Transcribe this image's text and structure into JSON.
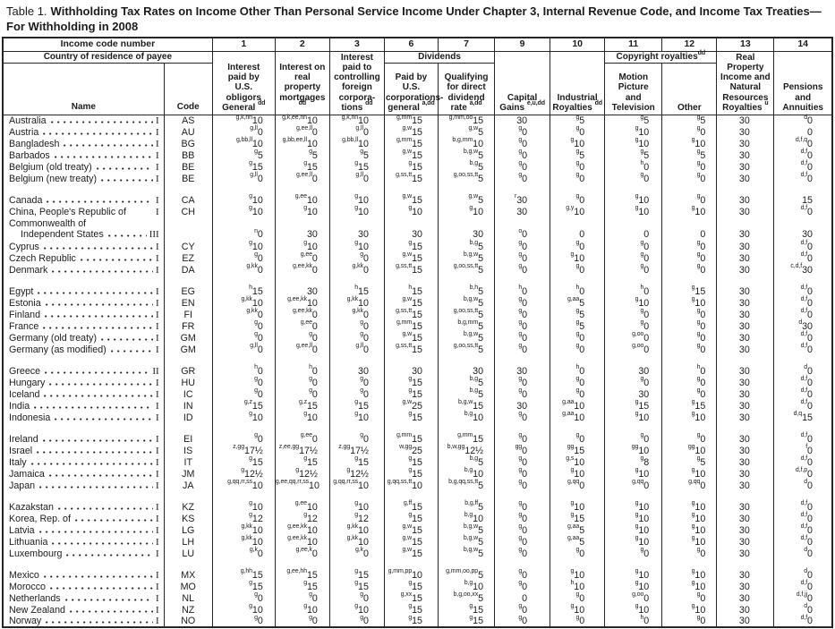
{
  "title": {
    "prefix": "Table 1.",
    "bold": "Withholding Tax Rates on Income Other Than Personal Service Income Under Chapter 3, Internal Revenue Code, and Income Tax Treaties—For Withholding in 2008"
  },
  "header": {
    "income_code_label": "Income code number",
    "country_label": "Country of residence of payee",
    "name_label": "Name",
    "code_label": "Code",
    "code_numbers": [
      "1",
      "2",
      "3",
      "6",
      "7",
      "9",
      "10",
      "11",
      "12",
      "13",
      "14"
    ],
    "dividends_group": "Dividends",
    "copyright_group": "Copyright royalties^dd^",
    "columns": {
      "c1": "Interest\npaid by\nU.S.\nobligors\nGeneral ^dd^",
      "c2": "Interest on\nreal property\nmortgages ^dd^",
      "c3": "Interest\npaid to\ncontrolling\nforeign\ncorpora-\ntions ^dd^",
      "c6": "Paid by U.S.\ncorporations-\ngeneral ^a,dd^",
      "c7": "Qualifying\nfor direct\ndividend\nrate ^a,dd^",
      "c9": "Capital\nGains ^e,u,dd^",
      "c10": "Industrial\nRoyalties ^dd^",
      "c11": "Motion\nPicture\nand\nTelevision",
      "c12": "Other",
      "c13": "Real\nProperty\nIncome and\nNatural\nResources\nRoyalties ^u^",
      "c14": "Pensions\nand\nAnnuities"
    }
  },
  "groups": [
    {
      "rows": [
        {
          "name": "Australia",
          "roman": "I",
          "code": "AS",
          "v": [
            "^g,k,nn^10",
            "^g,k,ee,nn^10",
            "^g,k,nn^10",
            "^g,mm^15",
            "^g,mm,oo^15",
            "30",
            "^g^5",
            "^g^5",
            "^g^5",
            "30",
            "^d^0"
          ]
        },
        {
          "name": "Austria",
          "roman": "I",
          "code": "AU",
          "v": [
            "^g,ll^0",
            "^g,ee,ll^0",
            "^g,ll^0",
            "^g,w^15",
            "^g,w^5",
            "^g^0",
            "^g^0",
            "^g^10",
            "^g^0",
            "30",
            "0"
          ]
        },
        {
          "name": "Bangladesh",
          "roman": "I",
          "code": "BG",
          "v": [
            "^g,bb,ll^10",
            "^g,bb,ee,ll^10",
            "^g,bb,ll^10",
            "^g,mm^15",
            "^b,g,mm^10",
            "^g^0",
            "^g^10",
            "^g^10",
            "^g^10",
            "30",
            "^d,f,q^0"
          ]
        },
        {
          "name": "Barbados",
          "roman": "I",
          "code": "BB",
          "v": [
            "^g^5",
            "^g^5",
            "^g^5",
            "^g,w^15",
            "^b,g,w^5",
            "^g^0",
            "^g^5",
            "^g^5",
            "^g^5",
            "30",
            "^d,f^0"
          ]
        },
        {
          "name": "Belgium (old treaty)",
          "roman": "I",
          "code": "BE",
          "v": [
            "^g^15",
            "^g^15",
            "^g^15",
            "^g^15",
            "^b,g^5",
            "^g^0",
            "^g^0",
            "^h^0",
            "^g^0",
            "30",
            "^d,f^0"
          ]
        },
        {
          "name": "Belgium (new treaty)",
          "roman": "I",
          "code": "BE",
          "v": [
            "^g,ll^0",
            "^g,ee,ll^0",
            "^g,ll^0",
            "^g,ss,tt^15",
            "^g,oo,ss,tt^5",
            "^g^0",
            "^g^0",
            "^g^0",
            "^g^0",
            "30",
            "^d,f^0"
          ]
        }
      ]
    },
    {
      "rows": [
        {
          "name": "Canada",
          "roman": "I",
          "code": "CA",
          "v": [
            "^g^10",
            "^g,ee^10",
            "^g^10",
            "^g,w^15",
            "^g,w^5",
            "^r^30",
            "^g^0",
            "^g^10",
            "^g^0",
            "30",
            "15"
          ]
        },
        {
          "name": "China, People's Republic of",
          "roman": "I",
          "code": "CH",
          "leader": false,
          "v": [
            "^g^10",
            "^g^10",
            "^g^10",
            "^g^10",
            "^g^10",
            "30",
            "^g,y^10",
            "^g^10",
            "^g^10",
            "30",
            "^d,f^0"
          ]
        },
        {
          "name": "Commonwealth of",
          "name2": "Independent States",
          "roman": "III",
          "code": "",
          "v": [
            "^n^0",
            "30",
            "30",
            "30",
            "30",
            "^o^0",
            "0",
            "0",
            "0",
            "30",
            "30"
          ]
        },
        {
          "name": "Cyprus",
          "roman": "I",
          "code": "CY",
          "v": [
            "^g^10",
            "^g^10",
            "^g^10",
            "^g^15",
            "^b,g^5",
            "^g^0",
            "^g^0",
            "^g^0",
            "^g^0",
            "30",
            "^d,f^0"
          ]
        },
        {
          "name": "Czech Republic",
          "roman": "I",
          "code": "EZ",
          "v": [
            "^g^0",
            "^g,ee^0",
            "^g^0",
            "^g,w^15",
            "^b,g,w^5",
            "^g^0",
            "^g^10",
            "^g^0",
            "^g^0",
            "30",
            "^d,f^0"
          ]
        },
        {
          "name": "Denmark",
          "roman": "I",
          "code": "DA",
          "v": [
            "^g,kk^0",
            "^g,ee,kk^0",
            "^g,kk^0",
            "^g,ss,tt^15",
            "^g,oo,ss,tt^5",
            "^g^0",
            "^g^0",
            "^g^0",
            "^g^0",
            "30",
            "^c,d,f^30"
          ]
        }
      ]
    },
    {
      "rows": [
        {
          "name": "Egypt",
          "roman": "I",
          "code": "EG",
          "v": [
            "^h^15",
            "30",
            "^h^15",
            "^h^15",
            "^b,h^5",
            "^h^0",
            "^h^0",
            "^h^0",
            "^g^15",
            "30",
            "^d,f^0"
          ]
        },
        {
          "name": "Estonia",
          "roman": "I",
          "code": "EN",
          "v": [
            "^g,kk^10",
            "^g,ee,kk^10",
            "^g,kk^10",
            "^g,w^15",
            "^b,g,w^5",
            "^g^0",
            "^g,aa^5",
            "^g^10",
            "^g^10",
            "30",
            "^d,f^0"
          ]
        },
        {
          "name": "Finland",
          "roman": "I",
          "code": "FI",
          "v": [
            "^g,kk^0",
            "^g,ee,kk^0",
            "^g,kk^0",
            "^g,ss,tt^15",
            "^g,oo,ss,tt^5",
            "^g^0",
            "^g^5",
            "^g^0",
            "^g^0",
            "30",
            "^d,f^0"
          ]
        },
        {
          "name": "France",
          "roman": "I",
          "code": "FR",
          "v": [
            "^g^0",
            "^g,ee^0",
            "^g^0",
            "^g,mm^15",
            "^b,g,mm^5",
            "^g^0",
            "^g^5",
            "^g^0",
            "^g^0",
            "30",
            "^d^30"
          ]
        },
        {
          "name": "Germany (old treaty)",
          "roman": "I",
          "code": "GM",
          "v": [
            "^g^0",
            "^g^0",
            "^g^0",
            "^g,w^15",
            "^b,g,w^5",
            "^g^0",
            "^g^0",
            "^g,oo^0",
            "^g^0",
            "30",
            "^d,f^0"
          ]
        },
        {
          "name": "Germany (as modified)",
          "roman": "I",
          "code": "GM",
          "v": [
            "^g,ll^0",
            "^g,ee,ll^0",
            "^g,ll^0",
            "^g,ss,tt^15",
            "^g,oo,ss,tt^5",
            "^g^0",
            "^g^0",
            "^g,oo^0",
            "^g^0",
            "30",
            "^d,f^0"
          ]
        }
      ]
    },
    {
      "rows": [
        {
          "name": "Greece",
          "roman": "II",
          "code": "GR",
          "v": [
            "^h^0",
            "^h^0",
            "30",
            "30",
            "30",
            "30",
            "^h^0",
            "30",
            "^h^0",
            "30",
            "^d^0"
          ]
        },
        {
          "name": "Hungary",
          "roman": "I",
          "code": "HU",
          "v": [
            "^g^0",
            "^g^0",
            "^g^0",
            "^g^15",
            "^b,g^5",
            "^g^0",
            "^g^0",
            "^g^0",
            "^g^0",
            "30",
            "^d,f^0"
          ]
        },
        {
          "name": "Iceland",
          "roman": "I",
          "code": "IC",
          "v": [
            "^g^0",
            "^g^0",
            "^g^0",
            "^g^15",
            "^b,g^5",
            "^g^0",
            "^g^0",
            "30",
            "^g^0",
            "30",
            "^d,f^0"
          ]
        },
        {
          "name": "India",
          "roman": "I",
          "code": "IN",
          "v": [
            "^g,z^15",
            "^g,z^15",
            "^g^15",
            "^g,w^25",
            "^b,g,w^15",
            "30",
            "^g,aa^10",
            "^g^15",
            "^g^15",
            "30",
            "^d,f^0"
          ]
        },
        {
          "name": "Indonesia",
          "roman": "I",
          "code": "ID",
          "v": [
            "^g^10",
            "^g^10",
            "^g^10",
            "^g^15",
            "^b,g^10",
            "^g^0",
            "^g,aa^10",
            "^g^10",
            "^g^10",
            "30",
            "^d,q^15"
          ]
        }
      ]
    },
    {
      "rows": [
        {
          "name": "Ireland",
          "roman": "I",
          "code": "EI",
          "v": [
            "^g^0",
            "^g,ee^0",
            "^g^0",
            "^g,mm^15",
            "^g,mm^15",
            "^g^0",
            "^g^0",
            "^g^0",
            "^g^0",
            "30",
            "^d,f^0"
          ]
        },
        {
          "name": "Israel",
          "roman": "I",
          "code": "IS",
          "v": [
            "^z,gg^17½",
            "^z,ee,gg^17½",
            "^z,gg^17½",
            "^w,gg^25",
            "^b,w,gg^12½",
            "^gg^0",
            "^gg^15",
            "^gg^10",
            "^gg^10",
            "30",
            "^f^0"
          ]
        },
        {
          "name": "Italy",
          "roman": "I",
          "code": "IT",
          "v": [
            "^g^15",
            "^g^15",
            "^g^15",
            "^g^15",
            "^b,g^5",
            "^g^0",
            "^g,s^10",
            "^g^8",
            "^g^5",
            "30",
            "^d,f^0"
          ]
        },
        {
          "name": "Jamaica",
          "roman": "I",
          "code": "JM",
          "v": [
            "^g^12½",
            "^g^12½",
            "^g^12½",
            "^g^15",
            "^b,g^10",
            "^g^0",
            "^g^10",
            "^g^10",
            "^g^10",
            "30",
            "^d,f,p^0"
          ]
        },
        {
          "name": "Japan",
          "roman": "I",
          "code": "JA",
          "v": [
            "^g,qq,rr,ss^10",
            "^g,ee,qq,rr,ss^10",
            "^g,qq,rr,ss^10",
            "^g,qq,ss,tt^10",
            "^b,g,qq,ss,tt^5",
            "^g^0",
            "^g,qq^0",
            "^g,qq^0",
            "^g,qq^0",
            "30",
            "^d^0"
          ]
        }
      ]
    },
    {
      "rows": [
        {
          "name": "Kazakstan",
          "roman": "I",
          "code": "KZ",
          "v": [
            "^g^10",
            "^g,ee^10",
            "^g^10",
            "^g,ff^15",
            "^b,g,ff^5",
            "^g^0",
            "^g^10",
            "^g^10",
            "^g^10",
            "30",
            "^d,f^0"
          ]
        },
        {
          "name": "Korea, Rep. of",
          "roman": "I",
          "code": "KS",
          "v": [
            "^g^12",
            "^g^12",
            "^g^12",
            "^g^15",
            "^b,g^10",
            "^g^0",
            "^g^15",
            "^g^10",
            "^g^10",
            "30",
            "^d,f^0"
          ]
        },
        {
          "name": "Latvia",
          "roman": "I",
          "code": "LG",
          "v": [
            "^g,kk^10",
            "^g,ee,kk^10",
            "^g,kk^10",
            "^g,w^15",
            "^b,g,w^5",
            "^g^0",
            "^g,aa^5",
            "^g^10",
            "^g^10",
            "30",
            "^d,f^0"
          ]
        },
        {
          "name": "Lithuania",
          "roman": "I",
          "code": "LH",
          "v": [
            "^g,kk^10",
            "^g,ee,kk^10",
            "^g,kk^10",
            "^g,w^15",
            "^b,g,w^5",
            "^g^0",
            "^g,aa^5",
            "^g^10",
            "^g^10",
            "30",
            "^d,f^0"
          ]
        },
        {
          "name": "Luxembourg",
          "roman": "I",
          "code": "LU",
          "v": [
            "^g,k^0",
            "^g,ee,k^0",
            "^g,k^0",
            "^g,w^15",
            "^b,g,w^5",
            "^g^0",
            "^g^0",
            "^g^0",
            "^g^0",
            "30",
            "^d^0"
          ]
        }
      ]
    },
    {
      "rows": [
        {
          "name": "Mexico",
          "roman": "I",
          "code": "MX",
          "v": [
            "^g,hh^15",
            "^g,ee,hh^15",
            "^g^15",
            "^g,mm,pp^10",
            "^g,mm,oo,pp^5",
            "^g^0",
            "^g^10",
            "^g^10",
            "^g^10",
            "30",
            "^d^0"
          ]
        },
        {
          "name": "Morocco",
          "roman": "I",
          "code": "MO",
          "v": [
            "^g^15",
            "^g^15",
            "^g^15",
            "^g^15",
            "^b,g^10",
            "^g^0",
            "^h^10",
            "^g^10",
            "^g^10",
            "30",
            "^d,f^0"
          ]
        },
        {
          "name": "Netherlands",
          "roman": "I",
          "code": "NL",
          "v": [
            "^g^0",
            "^g^0",
            "^g^0",
            "^g,xx^15",
            "^b,g,oo,xx^5",
            "0",
            "^g^0",
            "^g,oo^0",
            "^g^0",
            "30",
            "^d,f,jj^0"
          ]
        },
        {
          "name": "New Zealand",
          "roman": "I",
          "code": "NZ",
          "v": [
            "^g^10",
            "^g^10",
            "^g^10",
            "^g^15",
            "^g^15",
            "^g^0",
            "^g^10",
            "^g^10",
            "^g^10",
            "30",
            "^d^0"
          ]
        },
        {
          "name": "Norway",
          "roman": "I",
          "code": "NO",
          "v": [
            "^g^0",
            "^g^0",
            "^g^0",
            "^g^15",
            "^g^15",
            "^g^0",
            "^g^0",
            "^h^0",
            "^g^0",
            "30",
            "^d,f^0"
          ]
        }
      ]
    }
  ]
}
